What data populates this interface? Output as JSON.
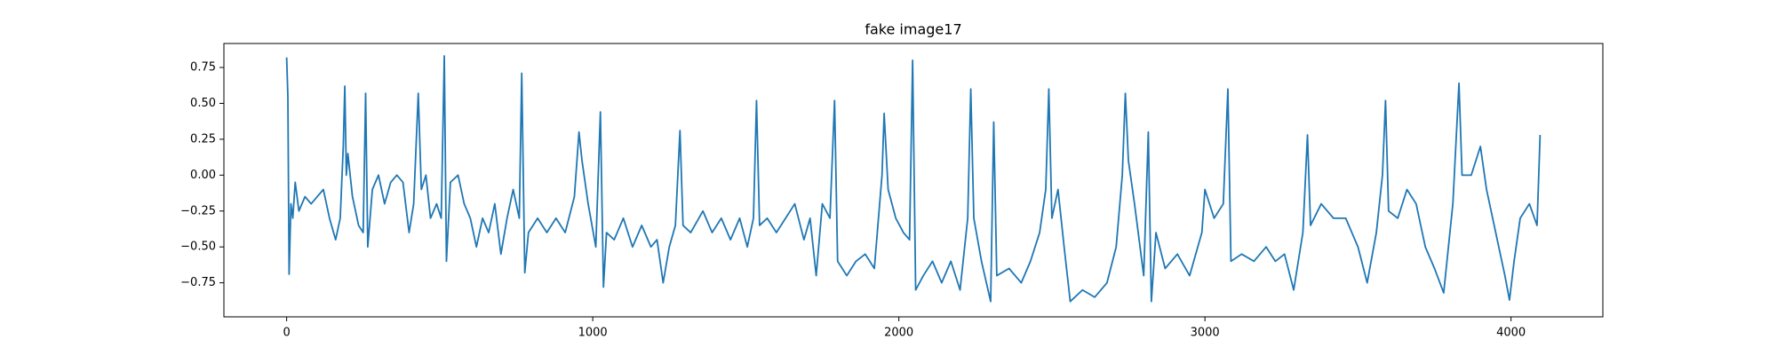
{
  "chart_data": {
    "type": "line",
    "title": "fake image17",
    "color": "#1f77b4",
    "x": [
      0,
      4,
      8,
      14,
      20,
      28,
      40,
      60,
      80,
      100,
      120,
      140,
      160,
      175,
      185,
      190,
      195,
      200,
      215,
      235,
      250,
      258,
      265,
      280,
      300,
      320,
      340,
      360,
      380,
      400,
      415,
      430,
      440,
      455,
      470,
      490,
      505,
      515,
      522,
      535,
      560,
      580,
      600,
      620,
      640,
      660,
      680,
      700,
      720,
      740,
      760,
      768,
      778,
      790,
      820,
      850,
      880,
      910,
      940,
      955,
      965,
      985,
      1010,
      1025,
      1035,
      1045,
      1070,
      1100,
      1130,
      1160,
      1190,
      1210,
      1230,
      1250,
      1270,
      1285,
      1295,
      1320,
      1360,
      1390,
      1420,
      1450,
      1480,
      1505,
      1525,
      1535,
      1545,
      1570,
      1600,
      1630,
      1660,
      1690,
      1710,
      1730,
      1750,
      1775,
      1790,
      1800,
      1830,
      1860,
      1890,
      1920,
      1945,
      1952,
      1965,
      1990,
      2015,
      2035,
      2045,
      2055,
      2080,
      2110,
      2140,
      2170,
      2200,
      2225,
      2235,
      2245,
      2270,
      2300,
      2310,
      2320,
      2360,
      2400,
      2430,
      2460,
      2480,
      2490,
      2500,
      2520,
      2540,
      2560,
      2600,
      2640,
      2680,
      2710,
      2730,
      2740,
      2750,
      2770,
      2800,
      2815,
      2825,
      2840,
      2870,
      2910,
      2950,
      2990,
      3000,
      3030,
      3060,
      3075,
      3085,
      3120,
      3160,
      3200,
      3230,
      3260,
      3290,
      3320,
      3335,
      3345,
      3380,
      3420,
      3460,
      3500,
      3530,
      3560,
      3580,
      3590,
      3600,
      3630,
      3660,
      3690,
      3720,
      3750,
      3780,
      3810,
      3830,
      3840,
      3870,
      3900,
      3920,
      3950,
      3980,
      3995,
      4010,
      4030,
      4060,
      4085,
      4095
    ],
    "values": [
      0.82,
      0.55,
      -0.69,
      -0.2,
      -0.3,
      -0.05,
      -0.25,
      -0.15,
      -0.2,
      -0.15,
      -0.1,
      -0.3,
      -0.45,
      -0.3,
      0.2,
      0.62,
      0.0,
      0.15,
      -0.15,
      -0.35,
      -0.4,
      0.57,
      -0.5,
      -0.1,
      0.0,
      -0.2,
      -0.05,
      0.0,
      -0.05,
      -0.4,
      -0.2,
      0.57,
      -0.1,
      0.0,
      -0.3,
      -0.2,
      -0.3,
      0.83,
      -0.6,
      -0.05,
      0.0,
      -0.2,
      -0.3,
      -0.5,
      -0.3,
      -0.4,
      -0.2,
      -0.55,
      -0.3,
      -0.1,
      -0.3,
      0.71,
      -0.68,
      -0.4,
      -0.3,
      -0.4,
      -0.3,
      -0.4,
      -0.15,
      0.3,
      0.1,
      -0.2,
      -0.5,
      0.44,
      -0.78,
      -0.4,
      -0.45,
      -0.3,
      -0.5,
      -0.35,
      -0.5,
      -0.45,
      -0.75,
      -0.5,
      -0.35,
      0.31,
      -0.35,
      -0.4,
      -0.25,
      -0.4,
      -0.3,
      -0.45,
      -0.3,
      -0.5,
      -0.3,
      0.52,
      -0.35,
      -0.3,
      -0.4,
      -0.3,
      -0.2,
      -0.45,
      -0.3,
      -0.7,
      -0.2,
      -0.3,
      0.52,
      -0.6,
      -0.7,
      -0.6,
      -0.55,
      -0.65,
      0.0,
      0.43,
      -0.1,
      -0.3,
      -0.4,
      -0.45,
      0.8,
      -0.8,
      -0.7,
      -0.6,
      -0.75,
      -0.6,
      -0.8,
      -0.3,
      0.6,
      -0.3,
      -0.6,
      -0.88,
      0.37,
      -0.7,
      -0.65,
      -0.75,
      -0.6,
      -0.4,
      -0.1,
      0.6,
      -0.3,
      -0.1,
      -0.5,
      -0.88,
      -0.8,
      -0.85,
      -0.75,
      -0.5,
      0.0,
      0.57,
      0.1,
      -0.2,
      -0.7,
      0.3,
      -0.88,
      -0.4,
      -0.65,
      -0.55,
      -0.7,
      -0.4,
      -0.1,
      -0.3,
      -0.2,
      0.6,
      -0.6,
      -0.55,
      -0.6,
      -0.5,
      -0.6,
      -0.55,
      -0.8,
      -0.4,
      0.28,
      -0.35,
      -0.2,
      -0.3,
      -0.3,
      -0.5,
      -0.75,
      -0.4,
      0.0,
      0.52,
      -0.25,
      -0.3,
      -0.1,
      -0.2,
      -0.5,
      -0.65,
      -0.82,
      -0.2,
      0.64,
      0.0,
      0.0,
      0.2,
      -0.1,
      -0.4,
      -0.7,
      -0.87,
      -0.6,
      -0.3,
      -0.2,
      -0.35,
      0.28
    ],
    "xlim": [
      -205,
      4300
    ],
    "ylim": [
      -0.987,
      0.917
    ],
    "xticks": [
      0,
      1000,
      2000,
      3000,
      4000
    ],
    "yticks": [
      {
        "value": -0.75,
        "label": "−0.75"
      },
      {
        "value": -0.5,
        "label": "−0.50"
      },
      {
        "value": -0.25,
        "label": "−0.25"
      },
      {
        "value": 0,
        "label": "0.00"
      },
      0.25,
      {
        "value": 0.5,
        "label": "0.50"
      },
      0.75
    ]
  }
}
